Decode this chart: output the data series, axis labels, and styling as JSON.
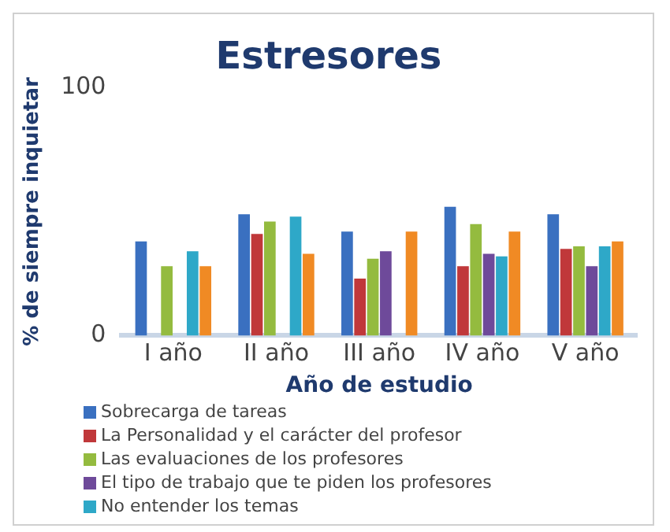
{
  "chart_data": {
    "type": "bar",
    "title": "Estresores",
    "xlabel": "Año de estudio",
    "ylabel": "% de siempre inquietar",
    "categories": [
      "I año",
      "II año",
      "III año",
      "IV año",
      "V año"
    ],
    "series": [
      {
        "name": "Sobrecarga de tareas",
        "color": "#3a70c0",
        "values": [
          38,
          49,
          42,
          52,
          49
        ]
      },
      {
        "name": "La Personalidad y el carácter del profesor",
        "color": "#c0383a",
        "values": [
          null,
          41,
          23,
          28,
          35
        ]
      },
      {
        "name": "Las evaluaciones de los profesores",
        "color": "#94bb3f",
        "values": [
          28,
          46,
          31,
          45,
          36
        ]
      },
      {
        "name": "El tipo de trabajo que te piden los profesores",
        "color": "#6e4a9a",
        "values": [
          null,
          null,
          34,
          33,
          28
        ]
      },
      {
        "name": "No entender los temas",
        "color": "#2ea8c8",
        "values": [
          34,
          48,
          null,
          32,
          36
        ]
      },
      {
        "color": "#f08a24",
        "values": [
          28,
          33,
          42,
          42,
          38
        ]
      }
    ],
    "ylim": [
      0,
      100
    ],
    "yticks": [
      0,
      100
    ],
    "grid": false,
    "legend": "bottom left"
  }
}
